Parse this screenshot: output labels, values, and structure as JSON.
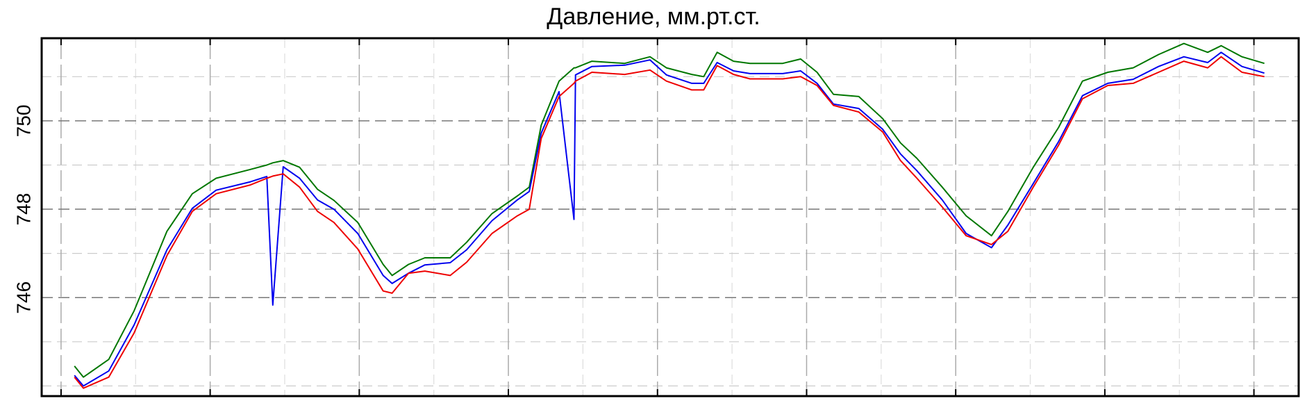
{
  "chart_data": {
    "type": "line",
    "title": "Давление, мм.рт.ст.",
    "x": [
      0.9,
      1.5,
      3.2,
      4.9,
      7.1,
      8.8,
      10.4,
      12.7,
      13.8,
      14.2,
      14.9,
      16.0,
      17.2,
      18.3,
      19.9,
      21.6,
      22.2,
      23.3,
      24.4,
      26.1,
      27.2,
      28.9,
      30.6,
      31.4,
      32.2,
      33.4,
      34.4,
      34.5,
      35.6,
      37.8,
      39.5,
      40.6,
      42.3,
      43.1,
      44.0,
      45.1,
      46.2,
      48.4,
      49.6,
      50.7,
      51.8,
      53.5,
      55.1,
      56.3,
      57.4,
      59.1,
      60.7,
      62.4,
      63.5,
      65.2,
      66.9,
      68.5,
      70.2,
      71.9,
      73.6,
      75.3,
      76.9,
      77.8,
      79.2,
      80.7
    ],
    "series": [
      {
        "color": "#007700",
        "values": [
          744.45,
          744.2,
          744.6,
          745.7,
          747.5,
          748.35,
          748.7,
          748.9,
          749.0,
          749.05,
          749.1,
          748.95,
          748.45,
          748.2,
          747.7,
          746.75,
          746.5,
          746.75,
          746.9,
          746.9,
          747.25,
          747.9,
          748.3,
          748.5,
          749.9,
          750.9,
          751.2,
          751.2,
          751.35,
          751.3,
          751.45,
          751.2,
          751.05,
          751.0,
          751.55,
          751.35,
          751.3,
          751.3,
          751.4,
          751.1,
          750.6,
          750.55,
          750.05,
          749.5,
          749.15,
          748.5,
          747.85,
          747.4,
          747.95,
          748.95,
          749.85,
          750.9,
          751.1,
          751.2,
          751.5,
          751.75,
          751.55,
          751.7,
          751.45,
          751.3
        ]
      },
      {
        "color": "#0000ee",
        "values": [
          744.24,
          744.0,
          744.34,
          745.38,
          747.08,
          748.02,
          748.43,
          748.62,
          748.74,
          745.83,
          748.96,
          748.7,
          748.21,
          748.0,
          747.45,
          746.5,
          746.32,
          746.55,
          746.74,
          746.79,
          747.08,
          747.74,
          748.21,
          748.4,
          749.72,
          750.66,
          747.77,
          751.04,
          751.23,
          751.26,
          751.38,
          751.04,
          750.85,
          750.85,
          751.32,
          751.13,
          751.07,
          751.07,
          751.13,
          750.85,
          750.38,
          750.28,
          749.81,
          749.25,
          748.87,
          748.21,
          747.45,
          747.13,
          747.64,
          748.58,
          749.53,
          750.57,
          750.85,
          750.94,
          751.23,
          751.45,
          751.32,
          751.55,
          751.23,
          751.08
        ]
      },
      {
        "color": "#ee0000",
        "values": [
          744.2,
          743.95,
          744.2,
          745.2,
          746.95,
          747.95,
          748.35,
          748.55,
          748.7,
          748.75,
          748.8,
          748.5,
          747.95,
          747.7,
          747.1,
          746.15,
          746.1,
          746.55,
          746.6,
          746.5,
          746.8,
          747.45,
          747.85,
          748.0,
          749.6,
          750.55,
          750.85,
          750.9,
          751.1,
          751.05,
          751.15,
          750.9,
          750.7,
          750.7,
          751.25,
          751.05,
          750.95,
          750.95,
          751.0,
          750.8,
          750.35,
          750.2,
          749.75,
          749.1,
          748.7,
          748.05,
          747.4,
          747.2,
          747.5,
          748.5,
          749.45,
          750.5,
          750.8,
          750.85,
          751.1,
          751.35,
          751.2,
          751.45,
          751.1,
          751.0
        ]
      }
    ],
    "xlim": [
      -1.3,
      83
    ],
    "xticks": [
      0,
      10,
      20,
      30,
      40,
      50,
      60,
      70,
      80
    ],
    "xminorticks": [
      5,
      15,
      25,
      35,
      45,
      55,
      65,
      75
    ],
    "ylim": [
      743.77,
      751.87
    ],
    "yticks": [
      746,
      748,
      750
    ],
    "yminorticks": [
      744,
      745,
      747,
      749,
      751
    ],
    "grid": true
  }
}
